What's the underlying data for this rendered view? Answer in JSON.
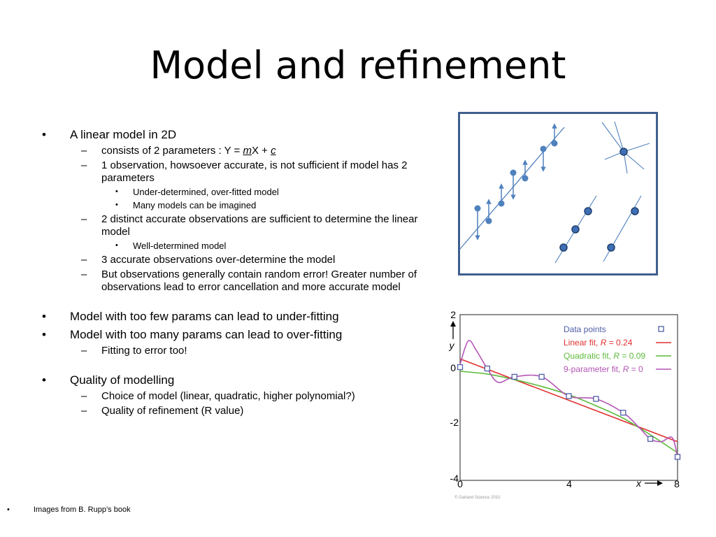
{
  "slide": {
    "title": "Model and refinement"
  },
  "bullets": {
    "b1": "A linear model in 2D",
    "b1_s1_pre": "consists of 2 parameters : Y = ",
    "b1_s1_m": "m",
    "b1_s1_mid": "X + ",
    "b1_s1_c": "c",
    "b1_s2": "1 observation, howsoever accurate, is not sufficient if model has 2 parameters",
    "b1_s2_a": "Under-determined, over-fitted model",
    "b1_s2_b": "Many models can be imagined",
    "b1_s3": "2 distinct accurate observations are sufficient to determine the linear model",
    "b1_s3_a": "Well-determined model",
    "b1_s4": "3 accurate observations over-determine the model",
    "b1_s5": "But observations generally contain random error! Greater number of observations lead to error cancellation and more accurate model",
    "b2": "Model with too few params can lead to under-fitting",
    "b3": "Model with too many params can lead to over-fitting",
    "b3_s1": "Fitting to error too!",
    "b4": "Quality of modelling",
    "b4_s1": "Choice of model (linear, quadratic, higher polynomial?)",
    "b4_s2": "Quality of refinement (R value)"
  },
  "footnote": "Images from B. Rupp’s book",
  "colors": {
    "frame": "#3f5f8f",
    "point": "#3f6fb5",
    "line": "#4f81bd",
    "linear": "#e03030",
    "quadratic": "#5cba3c",
    "nine": "#b455b5",
    "datapoint": "#4f5fa8"
  },
  "chart_data": {
    "type": "line",
    "xlabel": "x",
    "ylabel": "y",
    "xlim": [
      0,
      8
    ],
    "ylim": [
      -4,
      2
    ],
    "xticks": [
      "0",
      "4",
      "8"
    ],
    "yticks": [
      "2",
      "0",
      "-2",
      "-4"
    ],
    "legend_placement": "top-right",
    "copyright": "© Garland Science 2010",
    "legend": {
      "data": "Data points",
      "linear_pre": "Linear fit, ",
      "linear_val": " = 0.24",
      "quad_pre": "Quadratic fit, ",
      "quad_val": " = 0.09",
      "nine_pre": "9-parameter fit, ",
      "nine_val": " = 0",
      "r": "R"
    },
    "data_points": {
      "x": [
        0,
        1,
        2,
        3,
        4,
        5,
        6,
        7,
        8
      ],
      "y": [
        0.1,
        0.05,
        -0.25,
        -0.25,
        -0.95,
        -1.05,
        -1.55,
        -2.5,
        -3.15
      ]
    },
    "series": [
      {
        "name": "Linear fit, R = 0.24",
        "x": [
          0,
          8
        ],
        "y": [
          0.4,
          -2.6
        ]
      },
      {
        "name": "Quadratic fit, R = 0.09",
        "x": [
          0,
          1,
          2,
          3,
          4,
          5,
          6,
          7,
          8
        ],
        "y": [
          -0.05,
          -0.15,
          -0.35,
          -0.6,
          -0.9,
          -1.3,
          -1.75,
          -2.35,
          -3.0
        ]
      },
      {
        "name": "9-parameter fit, R = 0",
        "x": [
          0,
          0.3,
          0.6,
          1,
          1.4,
          2,
          3,
          4,
          5,
          6,
          6.6,
          7,
          7.4,
          7.8,
          8
        ],
        "y": [
          0.2,
          1.05,
          0.7,
          0.05,
          -0.45,
          -0.25,
          -0.25,
          -0.95,
          -1.05,
          -1.55,
          -2.1,
          -2.5,
          -2.6,
          -2.45,
          -3.15
        ]
      }
    ]
  }
}
